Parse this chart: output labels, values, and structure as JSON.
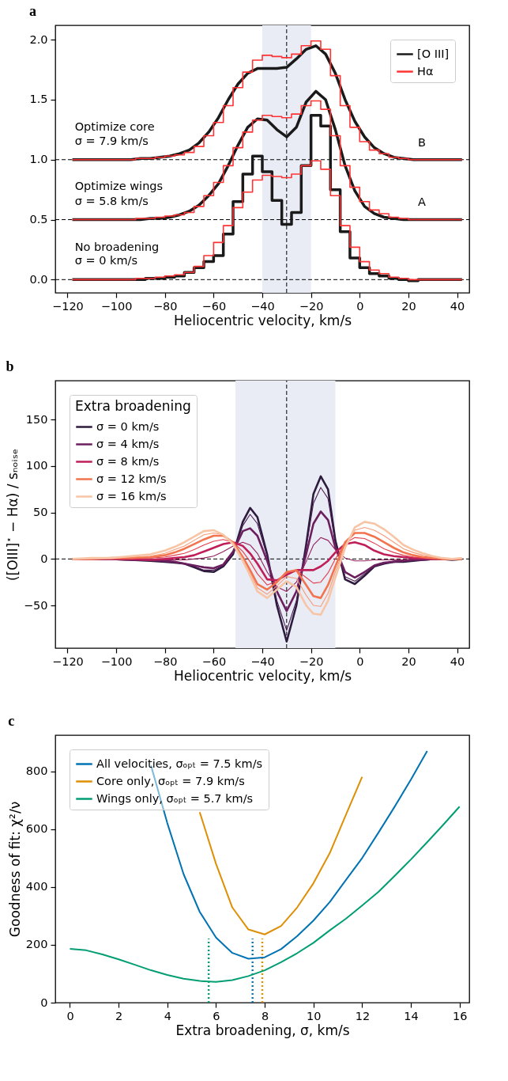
{
  "chart_data": [
    {
      "type": "line",
      "title": "a",
      "xlabel": "Heliocentric velocity, km/s",
      "xlim": [
        -125,
        45
      ],
      "ylim": [
        -0.11,
        2.12
      ],
      "xticks": [
        {
          "value": -120,
          "label": "−120"
        },
        {
          "value": -100,
          "label": "−100"
        },
        {
          "value": -80,
          "label": "−80"
        },
        {
          "value": -60,
          "label": "−60"
        },
        {
          "value": -40,
          "label": "−40"
        },
        {
          "value": -20,
          "label": "−20"
        },
        0,
        20,
        40
      ],
      "yticks": [
        {
          "value": 0,
          "label": "0.0"
        },
        {
          "value": 0.5,
          "label": "0.5"
        },
        {
          "value": 1,
          "label": "1.0"
        },
        {
          "value": 1.5,
          "label": "1.5"
        },
        {
          "value": 2,
          "label": "2.0"
        }
      ],
      "legend": "top right",
      "x": [
        -118,
        -114,
        -110,
        -106,
        -102,
        -98,
        -94,
        -90,
        -86,
        -82,
        -78,
        -74,
        -70,
        -66,
        -62,
        -58,
        -54,
        -50,
        -46,
        -42,
        -38,
        -34,
        -30,
        -26,
        -22,
        -18,
        -14,
        -10,
        -6,
        -2,
        2,
        6,
        10,
        14,
        18,
        22,
        26,
        30,
        34,
        38,
        42
      ],
      "series": [
        {
          "name": "[O III]",
          "type": "line",
          "color": "#1a1a1a",
          "values": [
            1,
            1,
            1,
            1,
            1,
            1,
            1,
            1.01,
            1.01,
            1.02,
            1.03,
            1.05,
            1.08,
            1.14,
            1.23,
            1.35,
            1.5,
            1.63,
            1.72,
            1.76,
            1.76,
            1.76,
            1.77,
            1.84,
            1.92,
            1.95,
            1.88,
            1.72,
            1.5,
            1.32,
            1.19,
            1.1,
            1.05,
            1.02,
            1.01,
            1,
            1,
            1,
            1,
            1,
            1
          ]
        },
        {
          "type": "line",
          "color": "#1a1a1a",
          "values": [
            0.5,
            0.5,
            0.5,
            0.5,
            0.5,
            0.5,
            0.5,
            0.5,
            0.51,
            0.51,
            0.52,
            0.54,
            0.57,
            0.62,
            0.7,
            0.8,
            0.95,
            1.12,
            1.27,
            1.34,
            1.33,
            1.25,
            1.19,
            1.27,
            1.48,
            1.57,
            1.5,
            1.25,
            0.95,
            0.74,
            0.61,
            0.55,
            0.52,
            0.51,
            0.5,
            0.5,
            0.5,
            0.5,
            0.5,
            0.5,
            0.5
          ]
        },
        {
          "type": "step",
          "color": "#1a1a1a",
          "values": [
            0,
            0,
            0,
            0,
            0,
            0,
            0,
            0,
            0.01,
            0.01,
            0.02,
            0.03,
            0.06,
            0.1,
            0.15,
            0.2,
            0.38,
            0.65,
            0.88,
            1.03,
            0.9,
            0.66,
            0.46,
            0.56,
            0.95,
            1.37,
            1.28,
            0.75,
            0.4,
            0.18,
            0.1,
            0.05,
            0.03,
            0.01,
            0,
            -0.01,
            0,
            0,
            0,
            0,
            0
          ]
        },
        {
          "name": "Hα",
          "type": "step",
          "color": "#ff3333",
          "values": [
            1,
            1,
            1,
            1,
            1,
            1,
            1,
            1.01,
            1.01,
            1.02,
            1.03,
            1.04,
            1.06,
            1.11,
            1.2,
            1.31,
            1.45,
            1.6,
            1.73,
            1.83,
            1.87,
            1.86,
            1.85,
            1.88,
            1.95,
            1.99,
            1.92,
            1.7,
            1.45,
            1.27,
            1.15,
            1.08,
            1.05,
            1.02,
            1.01,
            1,
            1,
            1,
            1,
            1,
            1
          ]
        },
        {
          "type": "step",
          "color": "#ff3333",
          "values": [
            0.5,
            0.5,
            0.5,
            0.5,
            0.5,
            0.5,
            0.5,
            0.51,
            0.51,
            0.52,
            0.53,
            0.54,
            0.56,
            0.61,
            0.7,
            0.81,
            0.95,
            1.1,
            1.23,
            1.33,
            1.37,
            1.36,
            1.35,
            1.38,
            1.45,
            1.49,
            1.42,
            1.2,
            0.95,
            0.77,
            0.65,
            0.58,
            0.55,
            0.52,
            0.51,
            0.5,
            0.5,
            0.5,
            0.5,
            0.5,
            0.5
          ]
        },
        {
          "type": "step",
          "color": "#ff3333",
          "values": [
            0,
            0,
            0,
            0,
            0,
            0,
            0,
            0.01,
            0.01,
            0.02,
            0.03,
            0.04,
            0.06,
            0.11,
            0.2,
            0.31,
            0.45,
            0.6,
            0.73,
            0.83,
            0.87,
            0.86,
            0.85,
            0.88,
            0.95,
            0.99,
            0.92,
            0.7,
            0.45,
            0.27,
            0.15,
            0.08,
            0.05,
            0.02,
            0.01,
            0,
            0,
            0,
            0,
            0,
            0
          ]
        }
      ],
      "bands": [
        {
          "axis": "x",
          "from": -40,
          "to": -20,
          "color": "#e9ecf5"
        }
      ],
      "ref_lines": [
        {
          "axis": "y",
          "value": 0,
          "color": "#000000",
          "line_style": "dashed"
        },
        {
          "axis": "y",
          "value": 0.5,
          "color": "#000000",
          "line_style": "dashed"
        },
        {
          "axis": "y",
          "value": 1,
          "color": "#000000",
          "line_style": "dashed"
        },
        {
          "axis": "x",
          "value": -30,
          "color": "#000000",
          "line_style": "dashed"
        }
      ],
      "annotations": [
        "Optimize core",
        "σ = 7.9 km/s",
        "B",
        "Optimize wings",
        "σ = 5.8 km/s",
        "A",
        "No broadening",
        "σ = 0 km/s"
      ]
    },
    {
      "type": "line",
      "title": "b",
      "xlabel": "Heliocentric velocity, km/s",
      "ylabel": "([OIII]$^{⋆}$ − Hα) / sₙₒᵢₛₑ",
      "legend_title": "Extra broadening",
      "xlim": [
        -125,
        45
      ],
      "ylim": [
        -96,
        192
      ],
      "xticks": [
        {
          "value": -120,
          "label": "−120"
        },
        {
          "value": -100,
          "label": "−100"
        },
        {
          "value": -80,
          "label": "−80"
        },
        {
          "value": -60,
          "label": "−60"
        },
        {
          "value": -40,
          "label": "−40"
        },
        {
          "value": -20,
          "label": "−20"
        },
        0,
        20,
        40
      ],
      "yticks": [
        {
          "value": -50,
          "label": "−50"
        },
        0,
        50,
        100,
        150
      ],
      "legend": "top left",
      "x": [
        -118,
        -110,
        -102,
        -94,
        -86,
        -80,
        -76,
        -72,
        -68,
        -64,
        -60,
        -56,
        -52,
        -48,
        -45,
        -42,
        -38,
        -34,
        -30,
        -26,
        -22,
        -19,
        -16,
        -13,
        -10,
        -6,
        -2,
        2,
        6,
        10,
        14,
        18,
        22,
        26,
        30,
        34,
        38,
        42
      ],
      "series": [
        {
          "name": "σ = 0 km/s",
          "color": "#2d1b3e",
          "values": [
            0,
            0,
            0,
            -1,
            -2,
            -3,
            -4,
            -5,
            -9,
            -13,
            -14,
            -8,
            5,
            40,
            55,
            45,
            5,
            -50,
            -89,
            -50,
            15,
            70,
            89,
            75,
            20,
            -22,
            -27,
            -18,
            -8,
            -5,
            -3,
            -3,
            -2,
            -1,
            0,
            0,
            -1,
            0
          ]
        },
        {
          "color": "#4a1c50",
          "values": [
            0,
            0,
            0,
            -1,
            -2,
            -3,
            -4,
            -5,
            -8,
            -12,
            -12,
            -7,
            6,
            36,
            48,
            38,
            3,
            -45,
            -77,
            -45,
            12,
            60,
            77,
            65,
            17,
            -19,
            -24,
            -16,
            -8,
            -5,
            -3,
            -2,
            -2,
            -1,
            0,
            0,
            0,
            0
          ]
        },
        {
          "name": "σ = 4 km/s",
          "color": "#6b1f5e",
          "values": [
            0,
            0,
            0,
            -1,
            -1,
            -2,
            -3,
            -5,
            -7,
            -9,
            -10,
            -6,
            8,
            30,
            33,
            25,
            -2,
            -35,
            -56,
            -35,
            5,
            38,
            51,
            42,
            12,
            -14,
            -20,
            -14,
            -7,
            -4,
            -3,
            -2,
            -1,
            -1,
            0,
            0,
            0,
            0
          ]
        },
        {
          "color": "#93205f",
          "values": [
            0,
            0,
            0,
            0,
            -1,
            -1,
            -1,
            -1,
            0,
            1,
            3,
            8,
            14,
            18,
            15,
            6,
            -14,
            -30,
            -35,
            -25,
            -3,
            15,
            23,
            20,
            10,
            1,
            -2,
            -2,
            -1,
            -1,
            -1,
            -1,
            0,
            0,
            0,
            0,
            0,
            0
          ]
        },
        {
          "name": "σ = 8 km/s",
          "color": "#bf1e58",
          "values": [
            0,
            0,
            0,
            0,
            -1,
            0,
            1,
            2,
            4,
            8,
            12,
            16,
            18,
            14,
            6,
            -5,
            -22,
            -23,
            -17,
            -12,
            -12,
            -12,
            -8,
            -2,
            7,
            16,
            18,
            15,
            9,
            5,
            3,
            2,
            1,
            1,
            0,
            0,
            0,
            0
          ]
        },
        {
          "color": "#e23e4f",
          "values": [
            0,
            0,
            0,
            1,
            1,
            2,
            4,
            6,
            10,
            15,
            19,
            21,
            18,
            8,
            -3,
            -16,
            -28,
            -24,
            -15,
            -12,
            -20,
            -26,
            -25,
            -15,
            0,
            17,
            23,
            22,
            17,
            11,
            7,
            4,
            2,
            1,
            0,
            0,
            0,
            0
          ]
        },
        {
          "name": "σ = 12 km/s",
          "color": "#f2744f",
          "values": [
            0,
            0,
            1,
            1,
            2,
            4,
            7,
            11,
            16,
            21,
            25,
            25,
            18,
            2,
            -12,
            -27,
            -33,
            -25,
            -14,
            -12,
            -28,
            -40,
            -42,
            -28,
            -8,
            18,
            28,
            28,
            24,
            18,
            12,
            7,
            4,
            2,
            1,
            0,
            0,
            0
          ]
        },
        {
          "color": "#f59c79",
          "values": [
            0,
            0,
            1,
            2,
            3,
            6,
            10,
            14,
            20,
            26,
            28,
            26,
            17,
            0,
            -15,
            -31,
            -38,
            -29,
            -19,
            -21,
            -39,
            -50,
            -51,
            -37,
            -14,
            15,
            31,
            34,
            31,
            25,
            18,
            11,
            7,
            4,
            2,
            1,
            0,
            0
          ]
        },
        {
          "name": "σ = 16 km/s",
          "color": "#f7c5a5",
          "values": [
            0,
            1,
            1,
            3,
            5,
            9,
            13,
            18,
            24,
            30,
            31,
            26,
            16,
            -2,
            -18,
            -35,
            -42,
            -33,
            -24,
            -30,
            -50,
            -59,
            -60,
            -45,
            -20,
            12,
            34,
            40,
            38,
            32,
            24,
            15,
            10,
            6,
            3,
            1,
            0,
            1
          ]
        }
      ],
      "bands": [
        {
          "axis": "x",
          "from": -51,
          "to": -10,
          "color": "#e9ecf5"
        }
      ],
      "ref_lines": [
        {
          "axis": "y",
          "value": 0,
          "color": "#000000",
          "line_style": "dashed"
        },
        {
          "axis": "x",
          "value": -30,
          "color": "#000000",
          "line_style": "dashed"
        }
      ]
    },
    {
      "type": "line",
      "title": "c",
      "xlabel": "Extra broadening, σ, km/s",
      "ylabel": "Goodness of fit: χ²/ν",
      "xlim": [
        -0.6,
        16.4
      ],
      "ylim": [
        0,
        925
      ],
      "xticks": [
        0,
        2,
        4,
        6,
        8,
        10,
        12,
        14,
        16
      ],
      "yticks": [
        0,
        200,
        400,
        600,
        800
      ],
      "legend": "top left",
      "x": [
        0,
        0.67,
        1.33,
        2,
        2.67,
        3.33,
        4,
        4.67,
        5.33,
        6,
        6.67,
        7.33,
        8,
        8.67,
        9.33,
        10,
        10.67,
        11.33,
        12,
        12.67,
        13.33,
        14,
        14.67,
        15.33,
        16
      ],
      "series": [
        {
          "name": "All velocities, σₒₚₜ = 7.5 km/s",
          "color": "#0173b2",
          "values": [
            null,
            null,
            null,
            null,
            null,
            820,
            621,
            444,
            314,
            225,
            172,
            152,
            157,
            185,
            230,
            284,
            348,
            424,
            500,
            588,
            677,
            771,
            870,
            null,
            null
          ]
        },
        {
          "name": "Core only, σₒₚₜ = 7.9 km/s",
          "color": "#de8f05",
          "values": [
            null,
            null,
            null,
            null,
            null,
            null,
            null,
            null,
            659,
            480,
            329,
            253,
            236,
            265,
            329,
            413,
            517,
            649,
            781,
            null,
            null,
            null,
            null,
            null,
            null
          ]
        },
        {
          "name": "Wings only, σₒₚₜ = 5.7 km/s",
          "color": "#029e73",
          "values": [
            186,
            181,
            167,
            150,
            131,
            112,
            96,
            83,
            75,
            72,
            78,
            92,
            112,
            140,
            171,
            207,
            250,
            290,
            336,
            383,
            438,
            495,
            555,
            615,
            678
          ]
        }
      ],
      "ref_lines": [
        {
          "axis": "x",
          "value": 5.7,
          "color": "#029e73",
          "line_style": "dotted"
        },
        {
          "axis": "x",
          "value": 7.5,
          "color": "#0173b2",
          "line_style": "dotted"
        },
        {
          "axis": "x",
          "value": 7.9,
          "color": "#de8f05",
          "line_style": "dotted"
        }
      ]
    }
  ]
}
